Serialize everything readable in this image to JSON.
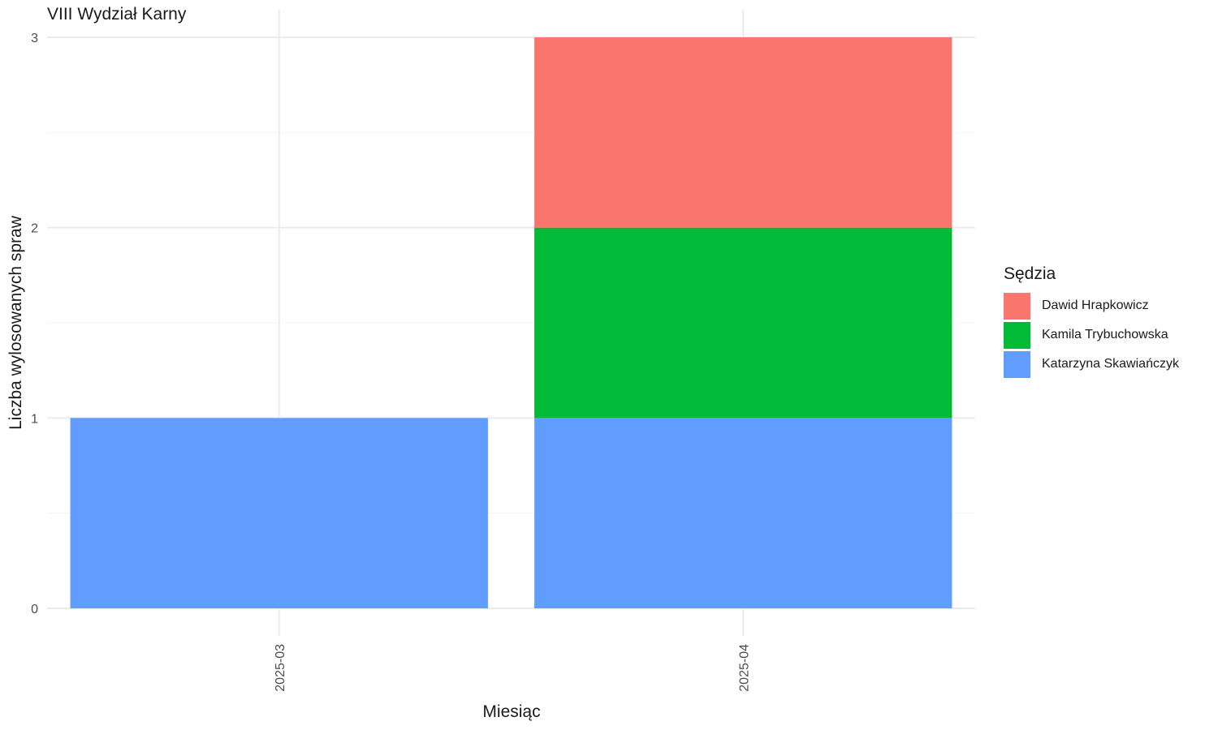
{
  "chart_data": {
    "type": "bar",
    "stacked": true,
    "title": "VIII Wydział Karny",
    "xlabel": "Miesiąc",
    "ylabel": "Liczba wylosowanych spraw",
    "categories": [
      "2025-03",
      "2025-04"
    ],
    "ylim": [
      0,
      3
    ],
    "yticks": [
      0,
      1,
      2,
      3
    ],
    "grid": true,
    "legend_title": "Sędzia",
    "legend_position": "right",
    "series": [
      {
        "name": "Katarzyna Skawiańczyk",
        "color": "#619CFF",
        "values": [
          1,
          1
        ]
      },
      {
        "name": "Kamila Trybuchowska",
        "color": "#00BA38",
        "values": [
          0,
          1
        ]
      },
      {
        "name": "Dawid Hrapkowicz",
        "color": "#F8766D",
        "values": [
          0,
          1
        ]
      }
    ],
    "legend_order": [
      "Dawid Hrapkowicz",
      "Kamila Trybuchowska",
      "Katarzyna Skawiańczyk"
    ]
  }
}
